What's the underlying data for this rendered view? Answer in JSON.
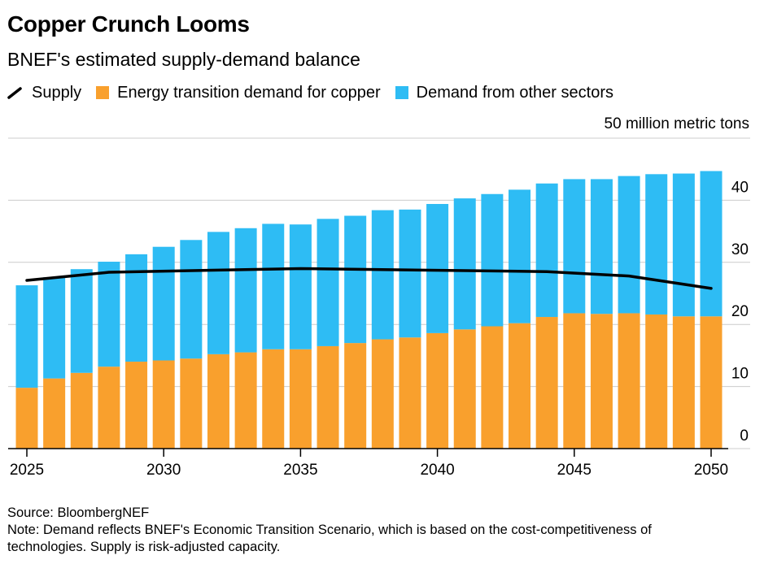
{
  "title": "Copper Crunch Looms",
  "subtitle": "BNEF's estimated supply-demand balance",
  "legend": {
    "supply": "Supply",
    "energy": "Energy transition demand for copper",
    "other": "Demand from other sectors"
  },
  "unit_label": "50 million metric tons",
  "footer": {
    "source": "Source: BloombergNEF",
    "note_line1": "Note: Demand reflects BNEF's Economic Transition Scenario, which is based on the cost-competitiveness of",
    "note_line2": "technologies. Supply is risk-adjusted capacity."
  },
  "colors": {
    "energy": "#f9a02d",
    "other": "#2ebcf4",
    "supply": "#000000",
    "grid": "#cccccc"
  },
  "chart_data": {
    "type": "bar",
    "stacked": true,
    "categories": [
      2025,
      2026,
      2027,
      2028,
      2029,
      2030,
      2031,
      2032,
      2033,
      2034,
      2035,
      2036,
      2037,
      2038,
      2039,
      2040,
      2041,
      2042,
      2043,
      2044,
      2045,
      2046,
      2047,
      2048,
      2049,
      2050
    ],
    "x_tick_labels": [
      "2025",
      "2030",
      "2035",
      "2040",
      "2045",
      "2050"
    ],
    "y_ticks": [
      0,
      10,
      20,
      30,
      40
    ],
    "y_tick_labels": [
      "0",
      "10",
      "20",
      "30",
      "40"
    ],
    "ylim": [
      0,
      50
    ],
    "grid": true,
    "legend_position": "top-left",
    "series": [
      {
        "name": "Energy transition demand for copper",
        "kind": "bar",
        "values": [
          9.8,
          11.3,
          12.2,
          13.2,
          14.0,
          14.2,
          14.5,
          15.2,
          15.5,
          16.0,
          16.0,
          16.5,
          17.0,
          17.6,
          17.9,
          18.6,
          19.2,
          19.7,
          20.2,
          21.2,
          21.8,
          21.7,
          21.8,
          21.6,
          21.3,
          21.3
        ]
      },
      {
        "name": "Demand from other sectors",
        "kind": "bar",
        "values": [
          16.5,
          16.3,
          16.7,
          16.9,
          17.3,
          18.3,
          19.1,
          19.7,
          20.0,
          20.2,
          20.1,
          20.5,
          20.5,
          20.8,
          20.6,
          20.8,
          21.1,
          21.3,
          21.5,
          21.5,
          21.6,
          21.7,
          22.1,
          22.6,
          23.0,
          23.4
        ]
      },
      {
        "name": "Supply",
        "kind": "line",
        "x": [
          2025,
          2028,
          2035,
          2044,
          2047,
          2050
        ],
        "values": [
          27.1,
          28.4,
          29.0,
          28.5,
          27.8,
          25.8
        ]
      }
    ]
  }
}
